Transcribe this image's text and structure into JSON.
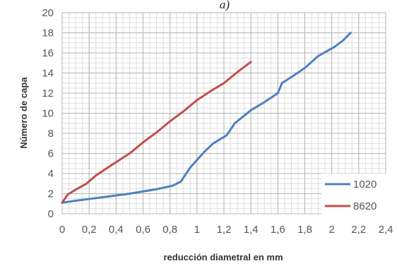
{
  "chart_data": {
    "type": "line",
    "panel_label": "a)",
    "title": "",
    "xlabel": "reducción diametral en mm",
    "ylabel": "Número de capa",
    "xlim": [
      0,
      2.4
    ],
    "ylim": [
      0,
      20
    ],
    "x_ticks": [
      "0",
      "0,2",
      "0,4",
      "0,6",
      "0,8",
      "1",
      "1,2",
      "1,4",
      "1,6",
      "1,8",
      "2",
      "2,2",
      "2,4"
    ],
    "y_ticks": [
      "0",
      "2",
      "4",
      "6",
      "8",
      "10",
      "12",
      "14",
      "16",
      "18",
      "20"
    ],
    "grid": true,
    "legend_position": "bottom-right",
    "series": [
      {
        "name": "1020",
        "color": "#4f81bd",
        "x": [
          0,
          0.1,
          0.3,
          0.5,
          0.7,
          0.82,
          0.88,
          0.95,
          1.05,
          1.12,
          1.22,
          1.28,
          1.4,
          1.5,
          1.6,
          1.63,
          1.7,
          1.8,
          1.9,
          2.02,
          2.08,
          2.14
        ],
        "y": [
          1.1,
          1.3,
          1.65,
          2.0,
          2.45,
          2.8,
          3.2,
          4.6,
          6.1,
          7.0,
          7.8,
          9.0,
          10.3,
          11.1,
          12.0,
          13.0,
          13.6,
          14.5,
          15.7,
          16.6,
          17.2,
          18.0
        ]
      },
      {
        "name": "8620",
        "color": "#c0504d",
        "x": [
          0,
          0.04,
          0.1,
          0.18,
          0.25,
          0.35,
          0.5,
          0.6,
          0.7,
          0.8,
          0.9,
          1.0,
          1.1,
          1.2,
          1.3,
          1.4
        ],
        "y": [
          1.1,
          1.9,
          2.4,
          3.0,
          3.8,
          4.7,
          6.0,
          7.1,
          8.1,
          9.2,
          10.2,
          11.3,
          12.2,
          13.0,
          14.1,
          15.1
        ]
      }
    ]
  }
}
